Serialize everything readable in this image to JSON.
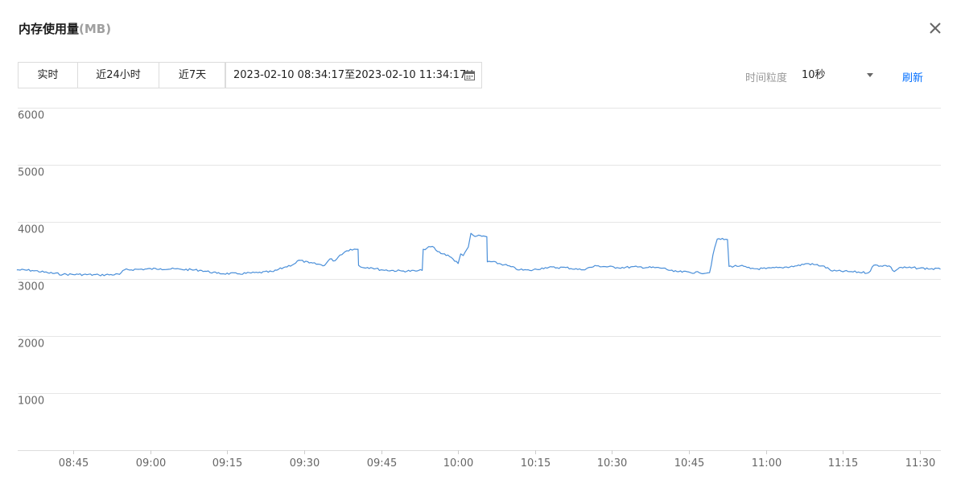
{
  "header": {
    "title": "内存使用量",
    "unit": "(MB)"
  },
  "toolbar": {
    "buttons": [
      "实时",
      "近24小时",
      "近7天"
    ],
    "date_range": "2023-02-10 08:34:17至2023-02-10 11:34:17",
    "granularity_label": "时间粒度",
    "granularity_value": "10秒",
    "refresh_label": "刷新"
  },
  "colors": {
    "line": "#4a8fd9",
    "grid": "#e6e6e6",
    "link": "#006eff"
  },
  "icons": [
    "close-icon",
    "calendar-icon",
    "chevron-down-icon"
  ],
  "chart_data": {
    "type": "line",
    "title": "",
    "xlabel": "",
    "ylabel": "",
    "ylim": [
      0,
      6000
    ],
    "yticks": [
      1000,
      2000,
      3000,
      4000,
      5000,
      6000
    ],
    "xlim": [
      "08:34:17",
      "11:34:17"
    ],
    "xticks": [
      "08:45",
      "09:00",
      "09:15",
      "09:30",
      "09:45",
      "10:00",
      "10:15",
      "10:30",
      "10:45",
      "11:00",
      "11:15",
      "11:30"
    ],
    "grid": true,
    "series": [
      {
        "points": [
          [
            "08:34",
            3160
          ],
          [
            "08:37",
            3150
          ],
          [
            "08:40",
            3110
          ],
          [
            "08:43",
            3080
          ],
          [
            "08:46",
            3080
          ],
          [
            "08:50",
            3070
          ],
          [
            "08:54",
            3080
          ],
          [
            "08:55",
            3160
          ],
          [
            "08:58",
            3170
          ],
          [
            "09:02",
            3180
          ],
          [
            "09:06",
            3170
          ],
          [
            "09:10",
            3150
          ],
          [
            "09:13",
            3100
          ],
          [
            "09:17",
            3090
          ],
          [
            "09:21",
            3110
          ],
          [
            "09:24",
            3130
          ],
          [
            "09:26",
            3200
          ],
          [
            "09:28",
            3260
          ],
          [
            "09:29",
            3330
          ],
          [
            "09:31",
            3280
          ],
          [
            "09:34",
            3240
          ],
          [
            "09:35",
            3350
          ],
          [
            "09:36",
            3320
          ],
          [
            "09:37",
            3420
          ],
          [
            "09:38",
            3480
          ],
          [
            "09:39",
            3520
          ],
          [
            "09:40.5",
            3520
          ],
          [
            "09:40.6",
            3240
          ],
          [
            "09:41",
            3210
          ],
          [
            "09:43",
            3200
          ],
          [
            "09:45",
            3160
          ],
          [
            "09:49",
            3140
          ],
          [
            "09:52",
            3140
          ],
          [
            "09:53",
            3150
          ],
          [
            "09:53.2",
            3520
          ],
          [
            "09:55",
            3570
          ],
          [
            "09:56",
            3480
          ],
          [
            "09:57",
            3440
          ],
          [
            "09:58",
            3420
          ],
          [
            "09:59",
            3350
          ],
          [
            "10:00",
            3270
          ],
          [
            "10:00.5",
            3440
          ],
          [
            "10:01",
            3410
          ],
          [
            "10:02",
            3560
          ],
          [
            "10:02.5",
            3800
          ],
          [
            "10:03",
            3760
          ],
          [
            "10:05.6",
            3740
          ],
          [
            "10:05.7",
            3300
          ],
          [
            "10:06",
            3310
          ],
          [
            "10:09",
            3250
          ],
          [
            "10:12",
            3160
          ],
          [
            "10:14",
            3150
          ],
          [
            "10:17",
            3200
          ],
          [
            "10:21",
            3200
          ],
          [
            "10:24",
            3160
          ],
          [
            "10:27",
            3230
          ],
          [
            "10:31",
            3200
          ],
          [
            "10:35",
            3210
          ],
          [
            "10:40",
            3190
          ],
          [
            "10:42",
            3130
          ],
          [
            "10:47",
            3110
          ],
          [
            "10:49",
            3110
          ],
          [
            "10:50",
            3550
          ],
          [
            "10:50.5",
            3700
          ],
          [
            "10:52.5",
            3690
          ],
          [
            "10:52.8",
            3220
          ],
          [
            "10:55",
            3230
          ],
          [
            "10:57",
            3180
          ],
          [
            "11:00",
            3180
          ],
          [
            "11:03",
            3200
          ],
          [
            "11:06",
            3230
          ],
          [
            "11:08",
            3270
          ],
          [
            "11:11",
            3230
          ],
          [
            "11:13",
            3140
          ],
          [
            "11:16",
            3130
          ],
          [
            "11:20",
            3110
          ],
          [
            "11:21",
            3240
          ],
          [
            "11:24",
            3230
          ],
          [
            "11:25",
            3130
          ],
          [
            "11:26",
            3200
          ],
          [
            "11:30",
            3190
          ],
          [
            "11:34",
            3170
          ]
        ]
      }
    ]
  }
}
